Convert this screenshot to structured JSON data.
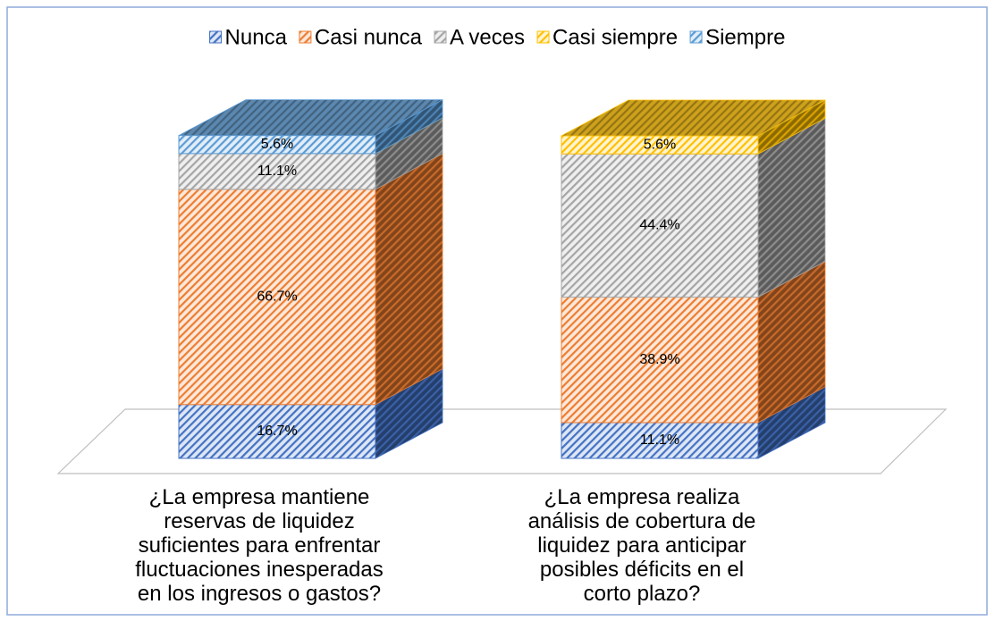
{
  "chart_data": {
    "type": "bar3d_stacked",
    "categories": [
      "¿La empresa mantiene\nreservas de liquidez\nsuficientes para enfrentar\nfluctuaciones inesperadas\nen los ingresos o gastos?",
      "¿La empresa realiza\nanálisis de cobertura de\nliquidez para anticipar\nposibles déficits en el\ncorto plazo?"
    ],
    "series": [
      {
        "name": "Nunca",
        "color": "#4472c4",
        "values": [
          16.7,
          11.1
        ],
        "value_labels": [
          "16.7%",
          "11.1%"
        ]
      },
      {
        "name": "Casi nunca",
        "color": "#ed7d31",
        "values": [
          66.7,
          38.9
        ],
        "value_labels": [
          "66.7%",
          "38.9%"
        ]
      },
      {
        "name": "A veces",
        "color": "#a5a5a5",
        "values": [
          11.1,
          44.4
        ],
        "value_labels": [
          "11.1%",
          "44.4%"
        ]
      },
      {
        "name": "Casi siempre",
        "color": "#ffc000",
        "values": [
          0,
          5.6
        ],
        "value_labels": [
          null,
          "5.6%"
        ]
      },
      {
        "name": "Siempre",
        "color": "#5b9bd5",
        "values": [
          5.6,
          0
        ],
        "value_labels": [
          "5.6%",
          null
        ]
      }
    ],
    "ylim": [
      0,
      100
    ],
    "legend": "top"
  }
}
